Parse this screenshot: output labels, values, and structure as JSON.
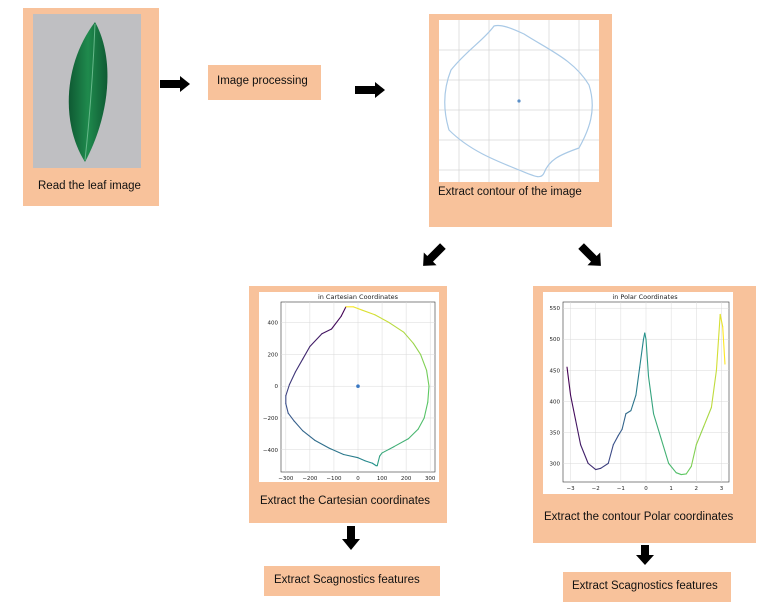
{
  "steps": {
    "read": "Read the leaf image",
    "processing": "Image processing",
    "contour": "Extract contour of the image",
    "cartesian": "Extract the Cartesian coordinates",
    "polar": "Extract the contour Polar coordinates",
    "scag_left": "Extract Scagnostics features",
    "scag_right": "Extract Scagnostics features"
  },
  "colors": {
    "box_fill": "#f8c29b",
    "arrow": "#000000",
    "leaf": "#1f7a43",
    "contour_line": "#a9c9e6"
  },
  "chart_data": [
    {
      "type": "line",
      "title": "in Cartesian Coordinates",
      "x_ticks": [
        "−300",
        "−200",
        "−100",
        "0",
        "100",
        "200",
        "300"
      ],
      "y_ticks": [
        "400",
        "200",
        "0",
        "−200",
        "−400"
      ],
      "xlim": [
        -320,
        320
      ],
      "ylim": [
        -540,
        530
      ],
      "grid": true,
      "series": [
        {
          "x": [
            -50,
            -70,
            -110,
            -150,
            -200,
            -230,
            -260,
            -285,
            -300,
            -300,
            -290,
            -265,
            -230,
            -180,
            -120,
            -60,
            0,
            30,
            60,
            75,
            80,
            90,
            100,
            150,
            210,
            250,
            275,
            290,
            295,
            285,
            260,
            230,
            190,
            130,
            70,
            15,
            -20,
            -50
          ],
          "y": [
            500,
            440,
            360,
            330,
            250,
            170,
            90,
            10,
            -60,
            -110,
            -170,
            -220,
            -280,
            -340,
            -390,
            -430,
            -450,
            -470,
            -485,
            -500,
            -500,
            -440,
            -420,
            -380,
            -330,
            -270,
            -200,
            -100,
            0,
            100,
            200,
            270,
            340,
            400,
            450,
            480,
            500,
            500
          ]
        }
      ],
      "center_point": {
        "x": 0,
        "y": 0
      }
    },
    {
      "type": "line",
      "title": "in Polar Coordinates",
      "x_ticks": [
        "−3",
        "−2",
        "−1",
        "0",
        "1",
        "2",
        "3"
      ],
      "y_ticks": [
        "550",
        "500",
        "450",
        "400",
        "350",
        "300"
      ],
      "xlim": [
        -3.3,
        3.3
      ],
      "ylim": [
        270,
        560
      ],
      "grid": true,
      "series": [
        {
          "x": [
            -3.14,
            -3.0,
            -2.8,
            -2.6,
            -2.3,
            -2.0,
            -1.8,
            -1.5,
            -1.3,
            -1.1,
            -0.95,
            -0.8,
            -0.6,
            -0.4,
            -0.25,
            -0.1,
            -0.05,
            0.0,
            0.1,
            0.3,
            0.6,
            0.9,
            1.2,
            1.4,
            1.6,
            1.8,
            2.0,
            2.3,
            2.6,
            2.8,
            2.95,
            3.05,
            3.14
          ],
          "y": [
            455,
            410,
            370,
            330,
            300,
            290,
            292,
            300,
            330,
            345,
            355,
            380,
            385,
            410,
            455,
            500,
            510,
            500,
            440,
            380,
            340,
            300,
            285,
            282,
            283,
            295,
            330,
            360,
            390,
            450,
            540,
            520,
            460
          ]
        }
      ]
    }
  ]
}
